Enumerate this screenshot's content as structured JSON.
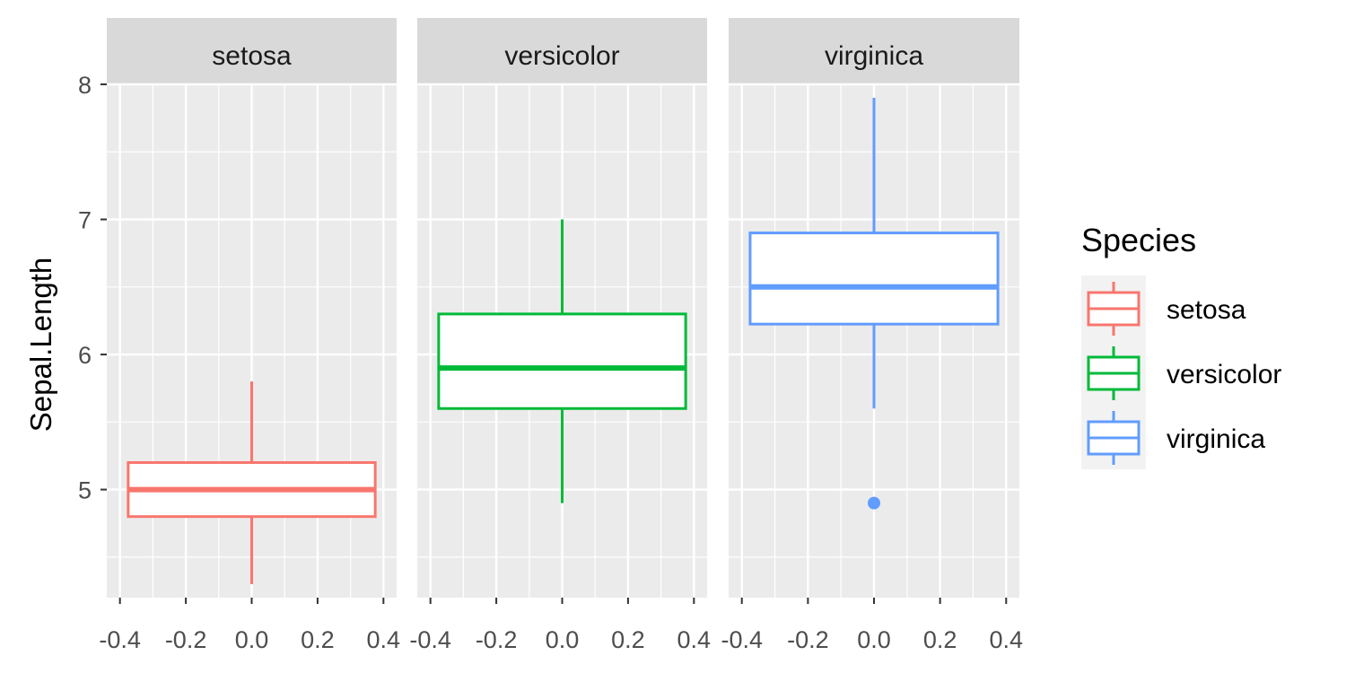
{
  "chart_data": {
    "type": "boxplot",
    "facet_by": "Species",
    "ylabel": "Sepal.Length",
    "xlabel": "",
    "xlim": [
      -0.4,
      0.4
    ],
    "ylim": [
      4.2,
      8.0
    ],
    "x_ticks": [
      -0.4,
      -0.2,
      0.0,
      0.2,
      0.4
    ],
    "x_tick_labels": [
      "-0.4",
      "-0.2",
      "0.0",
      "0.2",
      "0.4"
    ],
    "y_ticks": [
      5,
      6,
      7,
      8
    ],
    "y_tick_labels": [
      "5",
      "6",
      "7",
      "8"
    ],
    "legend": {
      "title": "Species",
      "position": "right",
      "entries": [
        "setosa",
        "versicolor",
        "virginica"
      ]
    },
    "series": [
      {
        "name": "setosa",
        "color": "#F8766D",
        "min": 4.3,
        "q1": 4.8,
        "median": 5.0,
        "q3": 5.2,
        "max": 5.8,
        "outliers": []
      },
      {
        "name": "versicolor",
        "color": "#00BA38",
        "min": 4.9,
        "q1": 5.6,
        "median": 5.9,
        "q3": 6.3,
        "max": 7.0,
        "outliers": []
      },
      {
        "name": "virginica",
        "color": "#619CFF",
        "min": 5.6,
        "q1": 6.225,
        "median": 6.5,
        "q3": 6.9,
        "max": 7.9,
        "outliers": [
          4.9
        ]
      }
    ]
  }
}
